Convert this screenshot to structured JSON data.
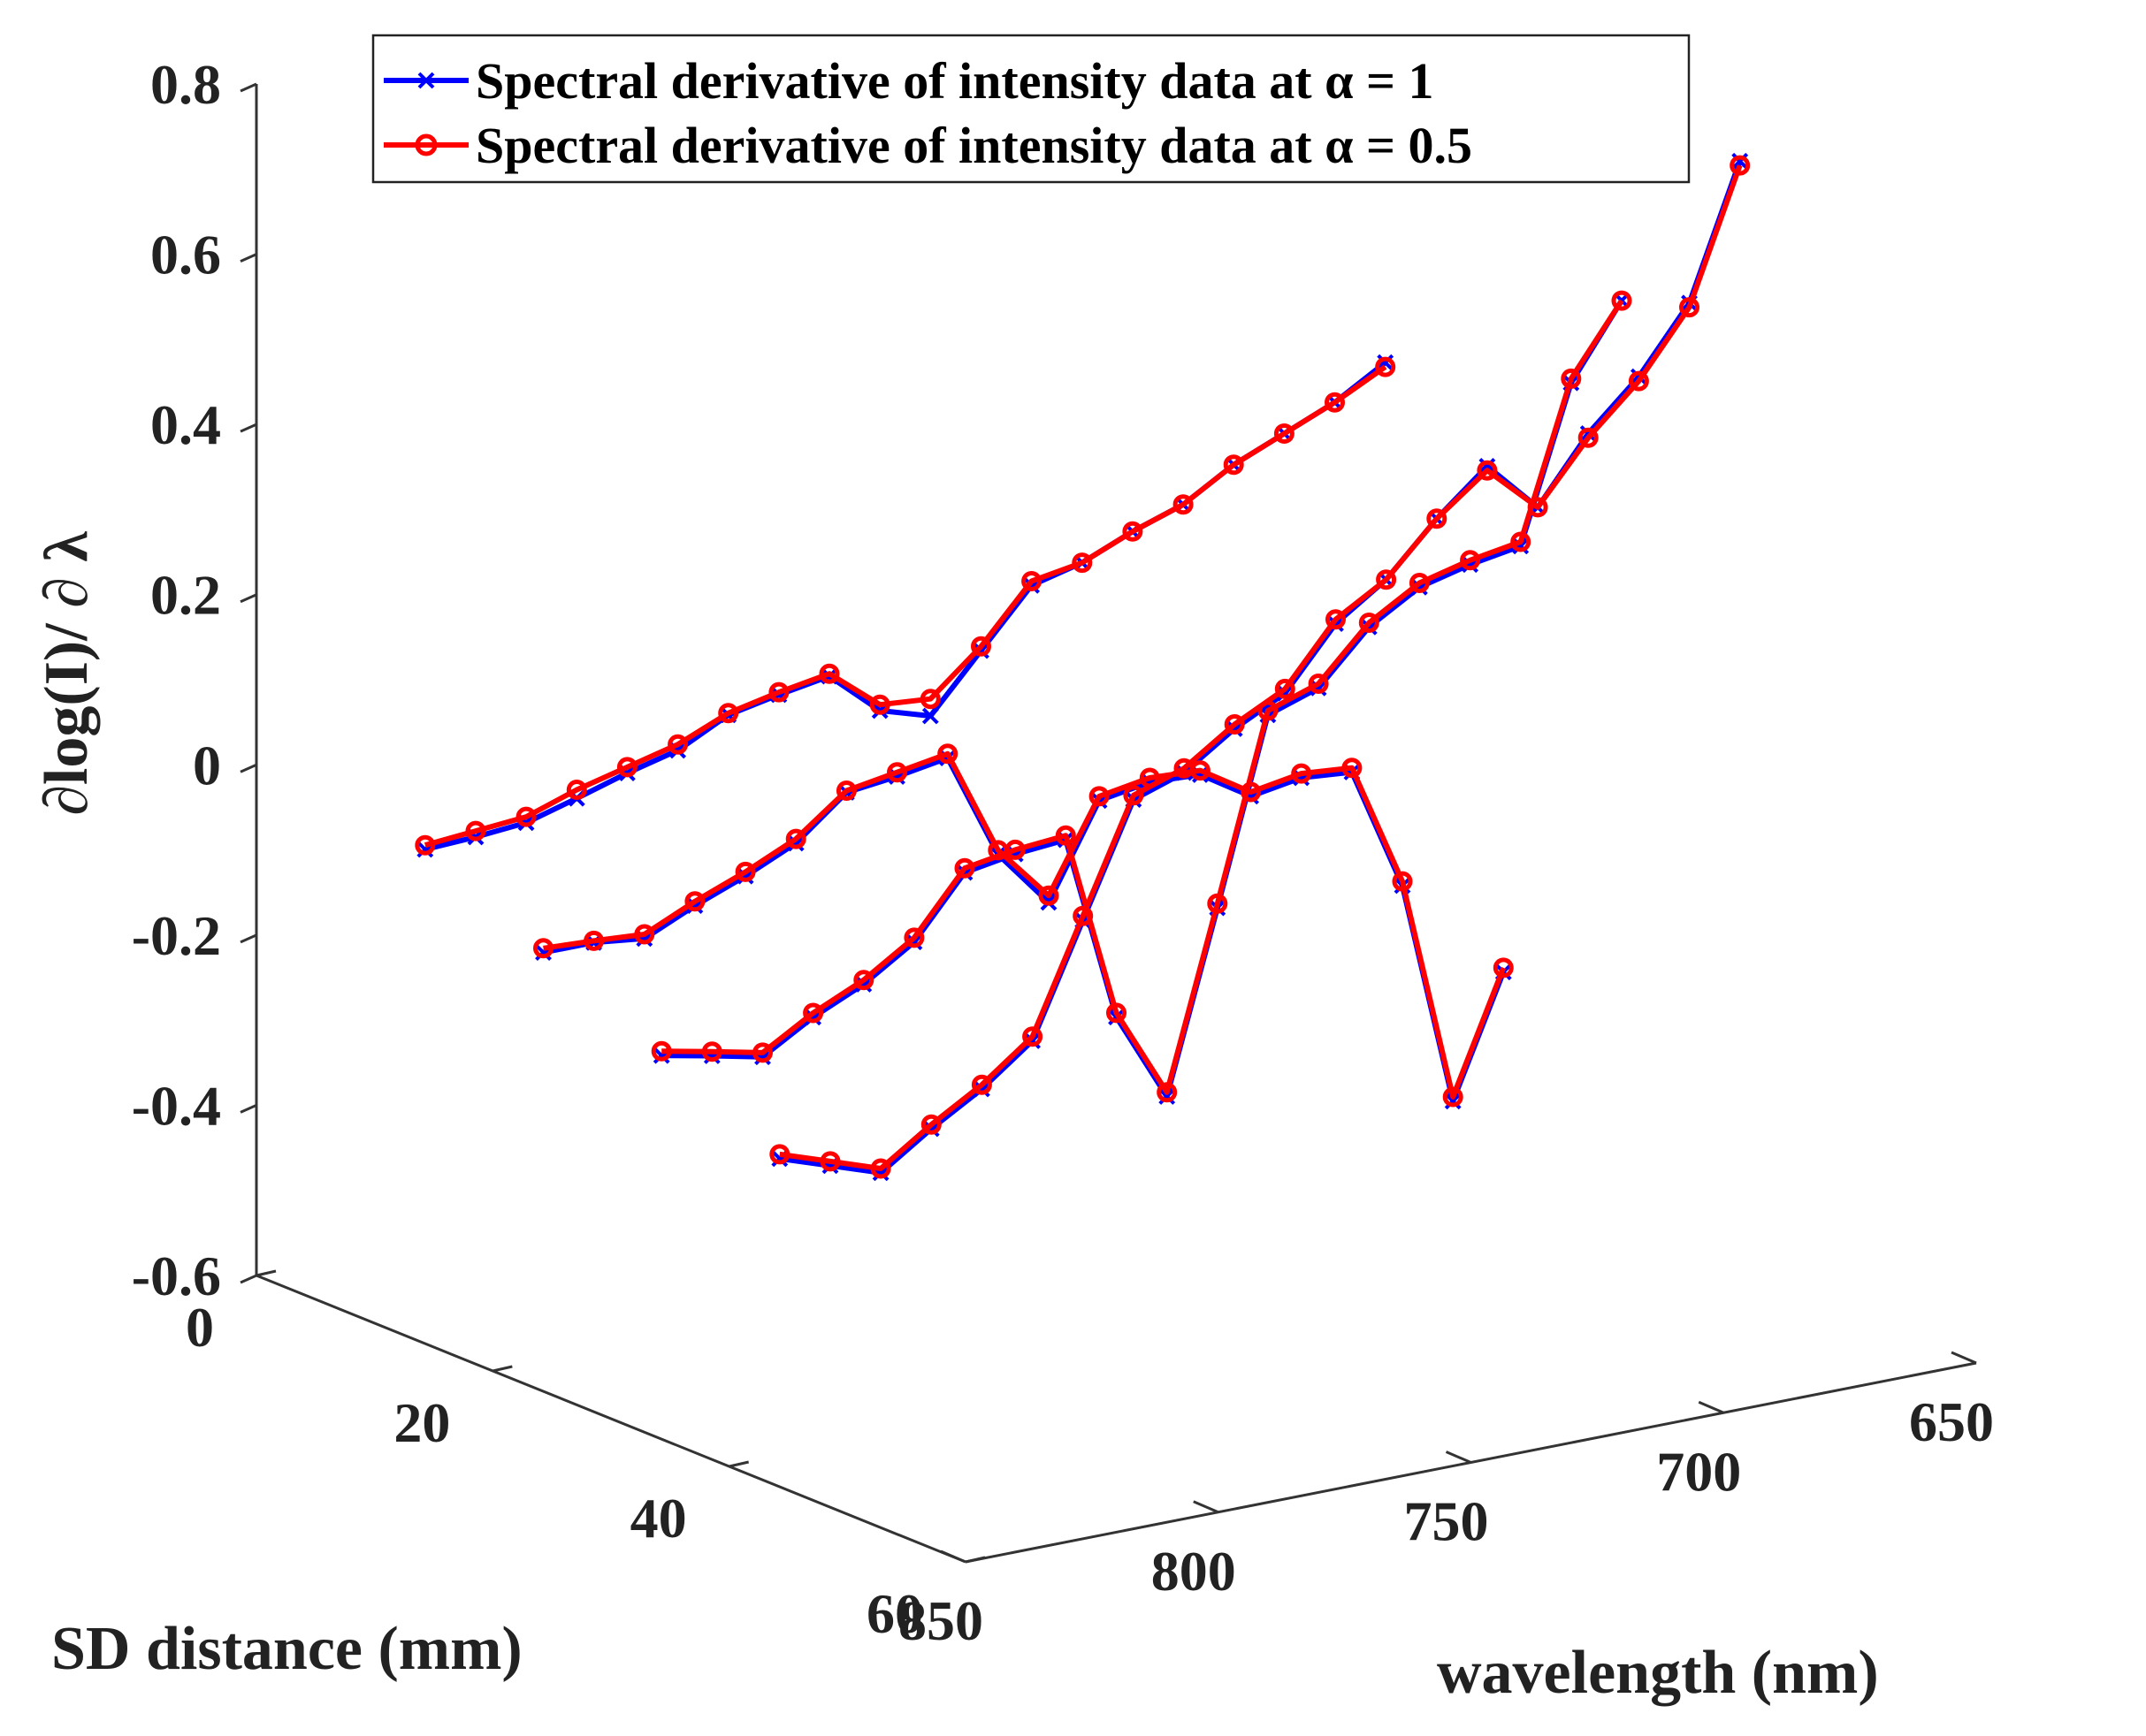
{
  "chart_data": {
    "type": "line",
    "projection": "3d",
    "title": "",
    "xlabel": "wavelength (nm)",
    "ylabel": "SD distance (mm)",
    "zlabel": "∂log(I)/ ∂ λ",
    "xlim": [
      650,
      850
    ],
    "ylim": [
      0,
      60
    ],
    "zlim": [
      -0.6,
      0.8
    ],
    "x_ticks": [
      "650",
      "700",
      "750",
      "800",
      "850"
    ],
    "y_ticks": [
      "0",
      "20",
      "40",
      "60"
    ],
    "z_ticks": [
      "0.8",
      "0.6",
      "0.4",
      "0.2",
      "0",
      "-0.2",
      "-0.4",
      "-0.6"
    ],
    "grid": false,
    "legend_position": "top-left",
    "series": [
      {
        "name": "Spectral derivative of intensity data at α = 1",
        "color": "#0000ff",
        "marker": "x",
        "lines": [
          {
            "sd": 10,
            "x": [
              840,
              830,
              820,
              810,
              800,
              790,
              780,
              770,
              760,
              750,
              740,
              730,
              720,
              710,
              700,
              690,
              680,
              670,
              660,
              650
            ],
            "z": [
              -0.055,
              -0.052,
              -0.047,
              -0.03,
              -0.012,
              0.003,
              0.033,
              0.045,
              0.055,
              0.003,
              -0.015,
              0.05,
              0.115,
              0.13,
              0.155,
              0.175,
              0.21,
              0.235,
              0.26,
              0.295
            ]
          },
          {
            "sd": 20,
            "x": [
              840,
              830,
              820,
              810,
              800,
              790,
              780,
              770,
              760,
              750,
              740,
              730,
              720,
              710,
              700,
              690,
              680,
              670,
              660,
              650
            ],
            "z": [
              -0.12,
              -0.12,
              -0.127,
              -0.1,
              -0.077,
              -0.05,
              -0.002,
              0.005,
              0.015,
              -0.11,
              -0.178,
              -0.07,
              -0.06,
              -0.063,
              -0.1,
              -0.09,
              -0.095,
              -0.24,
              -0.505,
              -0.365
            ]
          },
          {
            "sd": 30,
            "x": [
              840,
              830,
              820,
              810,
              800,
              790,
              780,
              770,
              760,
              750,
              740,
              730,
              720,
              710,
              700,
              690,
              680,
              670,
              660,
              650
            ],
            "z": [
              -0.185,
              -0.197,
              -0.21,
              -0.175,
              -0.148,
              -0.11,
              -0.04,
              -0.03,
              -0.025,
              -0.245,
              -0.35,
              -0.14,
              0.075,
              0.095,
              0.155,
              0.19,
              0.205,
              0.215,
              0.395,
              0.48
            ]
          },
          {
            "sd": 40,
            "x": [
              840,
              830,
              820,
              810,
              800,
              790,
              780,
              770,
              760,
              750,
              740,
              730,
              720,
              710,
              700,
              690,
              680,
              670,
              660,
              650
            ],
            "z": [
              -0.25,
              -0.27,
              -0.29,
              -0.25,
              -0.215,
              -0.17,
              -0.04,
              0.09,
              0.11,
              0.15,
              0.18,
              0.25,
              0.29,
              0.35,
              0.4,
              0.34,
              0.415,
              0.47,
              0.545,
              0.7
            ]
          }
        ]
      },
      {
        "name": "Spectral derivative of intensity data at α = 0.5",
        "color": "#ff0000",
        "marker": "o",
        "lines": [
          {
            "sd": 10,
            "x": [
              840,
              830,
              820,
              810,
              800,
              790,
              780,
              770,
              760,
              750,
              740,
              730,
              720,
              710,
              700,
              690,
              680,
              670,
              660,
              650
            ],
            "z": [
              -0.05,
              -0.045,
              -0.04,
              -0.02,
              -0.005,
              0.01,
              0.035,
              0.048,
              0.058,
              0.01,
              0.005,
              0.055,
              0.12,
              0.13,
              0.155,
              0.175,
              0.21,
              0.235,
              0.26,
              0.29
            ]
          },
          {
            "sd": 20,
            "x": [
              840,
              830,
              820,
              810,
              800,
              790,
              780,
              770,
              760,
              750,
              740,
              730,
              720,
              710,
              700,
              690,
              680,
              670,
              660,
              650
            ],
            "z": [
              -0.115,
              -0.118,
              -0.122,
              -0.095,
              -0.072,
              -0.045,
              0.0,
              0.01,
              0.02,
              -0.105,
              -0.17,
              -0.065,
              -0.055,
              -0.058,
              -0.095,
              -0.085,
              -0.09,
              -0.235,
              -0.5,
              -0.36
            ]
          },
          {
            "sd": 30,
            "x": [
              840,
              830,
              820,
              810,
              800,
              790,
              780,
              770,
              760,
              750,
              740,
              730,
              720,
              710,
              700,
              690,
              680,
              670,
              660,
              650
            ],
            "z": [
              -0.18,
              -0.192,
              -0.205,
              -0.17,
              -0.143,
              -0.105,
              -0.035,
              -0.025,
              -0.02,
              -0.24,
              -0.345,
              -0.135,
              0.08,
              0.1,
              0.16,
              0.195,
              0.21,
              0.22,
              0.4,
              0.48
            ]
          },
          {
            "sd": 40,
            "x": [
              840,
              830,
              820,
              810,
              800,
              790,
              780,
              770,
              760,
              750,
              740,
              730,
              720,
              710,
              700,
              690,
              680,
              670,
              660,
              650
            ],
            "z": [
              -0.245,
              -0.265,
              -0.285,
              -0.245,
              -0.21,
              -0.165,
              -0.035,
              0.095,
              0.115,
              0.155,
              0.185,
              0.255,
              0.29,
              0.35,
              0.395,
              0.34,
              0.41,
              0.465,
              0.54,
              0.695
            ]
          }
        ]
      }
    ]
  }
}
